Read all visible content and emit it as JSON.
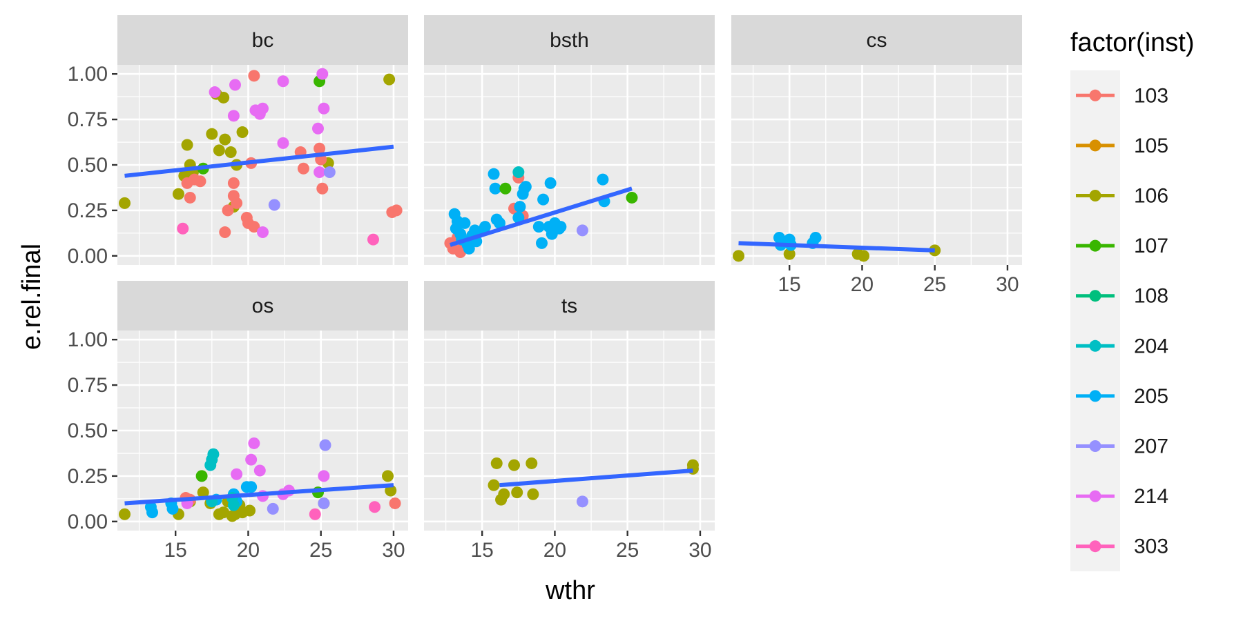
{
  "chart_data": {
    "type": "scatter",
    "xlabel": "wthr",
    "ylabel": "e.rel.final",
    "xlim": [
      11,
      31
    ],
    "ylim": [
      -0.05,
      1.05
    ],
    "x_ticks": [
      15,
      20,
      25,
      30
    ],
    "y_ticks": [
      0.0,
      0.25,
      0.5,
      0.75,
      1.0
    ],
    "y_tick_labels": [
      "0.00",
      "0.25",
      "0.50",
      "0.75",
      "1.00"
    ],
    "legend": {
      "title": "factor(inst)",
      "position": "right",
      "entries": [
        {
          "label": "103",
          "color": "#F8766D"
        },
        {
          "label": "105",
          "color": "#D89000"
        },
        {
          "label": "106",
          "color": "#A3A500"
        },
        {
          "label": "107",
          "color": "#39B600"
        },
        {
          "label": "108",
          "color": "#00BF7D"
        },
        {
          "label": "204",
          "color": "#00BFC4"
        },
        {
          "label": "205",
          "color": "#00B0F6"
        },
        {
          "label": "207",
          "color": "#9590FF"
        },
        {
          "label": "214",
          "color": "#E76BF3"
        },
        {
          "label": "303",
          "color": "#FF62BC"
        }
      ]
    },
    "trend_color": "#3366FF",
    "panels": [
      {
        "name": "bc",
        "trend": [
          [
            11.5,
            0.44
          ],
          [
            30,
            0.6
          ]
        ],
        "points": [
          [
            "106",
            11.5,
            0.29
          ],
          [
            "106",
            15.2,
            0.34
          ],
          [
            "106",
            15.6,
            0.44
          ],
          [
            "106",
            15.8,
            0.61
          ],
          [
            "106",
            16,
            0.5
          ],
          [
            "106",
            16.2,
            0.46
          ],
          [
            "106",
            17.5,
            0.67
          ],
          [
            "106",
            17.8,
            0.89
          ],
          [
            "106",
            18,
            0.58
          ],
          [
            "106",
            18.3,
            0.87
          ],
          [
            "106",
            18.4,
            0.64
          ],
          [
            "106",
            18.8,
            0.57
          ],
          [
            "106",
            19,
            0.27
          ],
          [
            "106",
            19.2,
            0.5
          ],
          [
            "106",
            19.6,
            0.68
          ],
          [
            "106",
            25.5,
            0.51
          ],
          [
            "106",
            29.7,
            0.97
          ],
          [
            "103",
            15.8,
            0.4
          ],
          [
            "103",
            16,
            0.32
          ],
          [
            "103",
            16.3,
            0.42
          ],
          [
            "103",
            16.7,
            0.41
          ],
          [
            "103",
            18.4,
            0.13
          ],
          [
            "103",
            18.6,
            0.25
          ],
          [
            "103",
            19,
            0.4
          ],
          [
            "103",
            19,
            0.33
          ],
          [
            "103",
            19.2,
            0.29
          ],
          [
            "103",
            19.9,
            0.21
          ],
          [
            "103",
            20,
            0.18
          ],
          [
            "103",
            20.2,
            0.51
          ],
          [
            "103",
            20.4,
            0.16
          ],
          [
            "103",
            20.4,
            0.99
          ],
          [
            "103",
            23.6,
            0.57
          ],
          [
            "103",
            23.8,
            0.48
          ],
          [
            "103",
            24.9,
            0.59
          ],
          [
            "103",
            25,
            0.53
          ],
          [
            "103",
            25.1,
            0.37
          ],
          [
            "103",
            29.9,
            0.24
          ],
          [
            "103",
            30.2,
            0.25
          ],
          [
            "107",
            16.9,
            0.48
          ],
          [
            "107",
            24.9,
            0.96
          ],
          [
            "214",
            17.7,
            0.9
          ],
          [
            "214",
            19,
            0.77
          ],
          [
            "214",
            19.1,
            0.94
          ],
          [
            "214",
            20.5,
            0.8
          ],
          [
            "214",
            20.8,
            0.78
          ],
          [
            "214",
            21,
            0.81
          ],
          [
            "214",
            21,
            0.13
          ],
          [
            "214",
            22.4,
            0.96
          ],
          [
            "214",
            22.4,
            0.62
          ],
          [
            "214",
            24.8,
            0.7
          ],
          [
            "214",
            24.9,
            0.46
          ],
          [
            "214",
            25.1,
            1.0
          ],
          [
            "214",
            25.2,
            0.81
          ],
          [
            "207",
            21.8,
            0.28
          ],
          [
            "207",
            25.6,
            0.46
          ],
          [
            "303",
            15.5,
            0.15
          ],
          [
            "303",
            28.6,
            0.09
          ]
        ]
      },
      {
        "name": "bsth",
        "trend": [
          [
            12.8,
            0.06
          ],
          [
            25.3,
            0.37
          ]
        ],
        "points": [
          [
            "103",
            12.8,
            0.07
          ],
          [
            "103",
            13,
            0.04
          ],
          [
            "103",
            13.3,
            0.1
          ],
          [
            "103",
            13.5,
            0.02
          ],
          [
            "103",
            13.7,
            0.05
          ],
          [
            "103",
            17.2,
            0.26
          ],
          [
            "103",
            17.5,
            0.43
          ],
          [
            "103",
            17.8,
            0.22
          ],
          [
            "205",
            13.1,
            0.23
          ],
          [
            "205",
            13.2,
            0.15
          ],
          [
            "205",
            13.3,
            0.19
          ],
          [
            "205",
            13.5,
            0.12
          ],
          [
            "205",
            13.6,
            0.09
          ],
          [
            "205",
            13.8,
            0.18
          ],
          [
            "205",
            14,
            0.06
          ],
          [
            "205",
            14.1,
            0.04
          ],
          [
            "205",
            14.3,
            0.11
          ],
          [
            "205",
            14.5,
            0.14
          ],
          [
            "205",
            14.6,
            0.08
          ],
          [
            "205",
            14.8,
            0.13
          ],
          [
            "205",
            15.2,
            0.16
          ],
          [
            "205",
            15.8,
            0.45
          ],
          [
            "205",
            15.9,
            0.37
          ],
          [
            "205",
            16,
            0.2
          ],
          [
            "205",
            16.2,
            0.18
          ],
          [
            "205",
            17.5,
            0.21
          ],
          [
            "205",
            17.6,
            0.27
          ],
          [
            "205",
            17.8,
            0.34
          ],
          [
            "205",
            17.9,
            0.37
          ],
          [
            "205",
            18,
            0.38
          ],
          [
            "205",
            18.9,
            0.16
          ],
          [
            "205",
            19.1,
            0.07
          ],
          [
            "205",
            19.2,
            0.31
          ],
          [
            "205",
            19.6,
            0.16
          ],
          [
            "205",
            19.7,
            0.4
          ],
          [
            "205",
            19.8,
            0.12
          ],
          [
            "205",
            20,
            0.18
          ],
          [
            "205",
            20.3,
            0.15
          ],
          [
            "205",
            20.4,
            0.16
          ],
          [
            "205",
            23.3,
            0.42
          ],
          [
            "205",
            23.4,
            0.3
          ],
          [
            "204",
            17.5,
            0.46
          ],
          [
            "107",
            16.6,
            0.37
          ],
          [
            "107",
            25.3,
            0.32
          ],
          [
            "207",
            21.9,
            0.14
          ]
        ]
      },
      {
        "name": "cs",
        "trend": [
          [
            11.5,
            0.07
          ],
          [
            25,
            0.03
          ]
        ],
        "points": [
          [
            "106",
            11.5,
            0.0
          ],
          [
            "106",
            15,
            0.01
          ],
          [
            "106",
            19.7,
            0.01
          ],
          [
            "106",
            20.1,
            0.0
          ],
          [
            "106",
            25,
            0.03
          ],
          [
            "205",
            14.3,
            0.1
          ],
          [
            "205",
            14.4,
            0.06
          ],
          [
            "205",
            15,
            0.09
          ],
          [
            "205",
            15.1,
            0.06
          ],
          [
            "205",
            16.6,
            0.07
          ],
          [
            "205",
            16.8,
            0.1
          ]
        ]
      },
      {
        "name": "os",
        "trend": [
          [
            11.5,
            0.1
          ],
          [
            30,
            0.2
          ]
        ],
        "points": [
          [
            "106",
            11.5,
            0.04
          ],
          [
            "106",
            15.2,
            0.04
          ],
          [
            "106",
            16,
            0.11
          ],
          [
            "106",
            16.9,
            0.16
          ],
          [
            "106",
            17.4,
            0.1
          ],
          [
            "106",
            18,
            0.04
          ],
          [
            "106",
            18.3,
            0.05
          ],
          [
            "106",
            18.6,
            0.11
          ],
          [
            "106",
            18.9,
            0.03
          ],
          [
            "106",
            19.1,
            0.04
          ],
          [
            "106",
            19.4,
            0.09
          ],
          [
            "106",
            19.6,
            0.05
          ],
          [
            "106",
            20.1,
            0.06
          ],
          [
            "106",
            25.2,
            0.1
          ],
          [
            "106",
            29.6,
            0.25
          ],
          [
            "106",
            29.8,
            0.17
          ],
          [
            "205",
            13.3,
            0.08
          ],
          [
            "205",
            13.4,
            0.05
          ],
          [
            "205",
            14.7,
            0.1
          ],
          [
            "205",
            14.8,
            0.07
          ],
          [
            "205",
            17.8,
            0.12
          ],
          [
            "205",
            19,
            0.15
          ],
          [
            "205",
            19.2,
            0.11
          ],
          [
            "205",
            19.9,
            0.19
          ],
          [
            "205",
            20.2,
            0.19
          ],
          [
            "204",
            17.4,
            0.31
          ],
          [
            "204",
            17.5,
            0.34
          ],
          [
            "204",
            17.6,
            0.37
          ],
          [
            "204",
            17.5,
            0.11
          ],
          [
            "204",
            18.9,
            0.13
          ],
          [
            "204",
            19,
            0.09
          ],
          [
            "103",
            15.7,
            0.13
          ],
          [
            "103",
            16,
            0.12
          ],
          [
            "103",
            30.1,
            0.1
          ],
          [
            "107",
            16.8,
            0.25
          ],
          [
            "107",
            24.8,
            0.16
          ],
          [
            "214",
            15.8,
            0.1
          ],
          [
            "214",
            19.2,
            0.26
          ],
          [
            "214",
            20.2,
            0.34
          ],
          [
            "214",
            20.4,
            0.43
          ],
          [
            "214",
            20.8,
            0.28
          ],
          [
            "214",
            21,
            0.14
          ],
          [
            "214",
            22.4,
            0.15
          ],
          [
            "214",
            22.8,
            0.17
          ],
          [
            "214",
            25.2,
            0.25
          ],
          [
            "207",
            21.7,
            0.07
          ],
          [
            "207",
            25.2,
            0.1
          ],
          [
            "207",
            25.3,
            0.42
          ],
          [
            "303",
            24.6,
            0.04
          ],
          [
            "303",
            28.7,
            0.08
          ]
        ]
      },
      {
        "name": "ts",
        "trend": [
          [
            16.2,
            0.2
          ],
          [
            29.5,
            0.28
          ]
        ],
        "points": [
          [
            "106",
            15.8,
            0.2
          ],
          [
            "106",
            16,
            0.32
          ],
          [
            "106",
            16.3,
            0.12
          ],
          [
            "106",
            16.5,
            0.15
          ],
          [
            "106",
            17.2,
            0.31
          ],
          [
            "106",
            17.4,
            0.16
          ],
          [
            "106",
            18.4,
            0.32
          ],
          [
            "106",
            18.5,
            0.15
          ],
          [
            "106",
            29.5,
            0.31
          ],
          [
            "106",
            29.5,
            0.29
          ],
          [
            "207",
            21.9,
            0.11
          ]
        ]
      }
    ]
  }
}
